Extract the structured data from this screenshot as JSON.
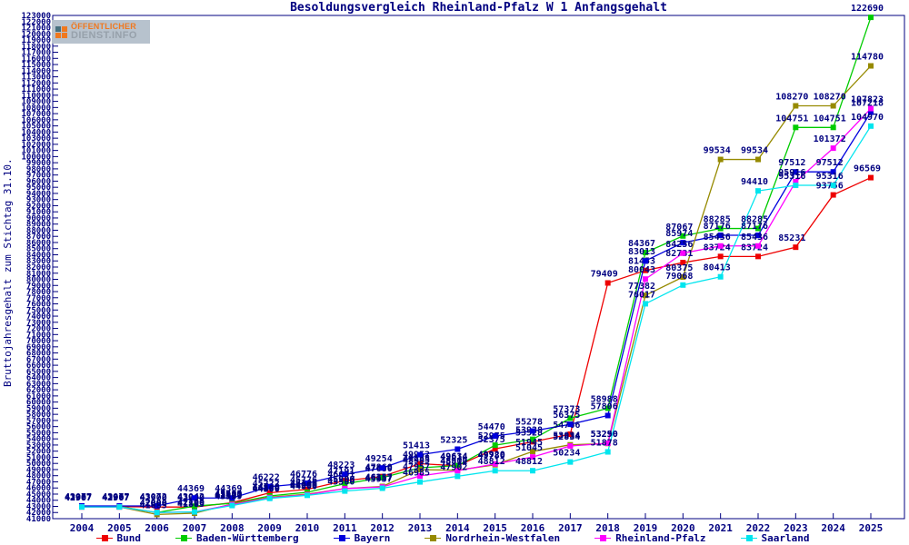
{
  "title": "Besoldungsvergleich Rheinland-Pfalz W 1 Anfangsgehalt",
  "logo": {
    "line1": "ÖFFENTLICHER",
    "line2": "DIENST.INFO"
  },
  "colors": {
    "axis": "#000080",
    "text": "#000080",
    "background": "#ffffff",
    "logo_background": "#b7c2cd",
    "logo_orange": "#f0781e",
    "logo_grey": "#97a1ab"
  },
  "chart_data": {
    "type": "line",
    "title": "Besoldungsvergleich Rheinland-Pfalz W 1 Anfangsgehalt",
    "xlabel": "",
    "ylabel": "Bruttojahresgehalt zum Stichtag 31.10.",
    "x": [
      2004,
      2005,
      2006,
      2007,
      2008,
      2009,
      2010,
      2011,
      2012,
      2013,
      2014,
      2015,
      2016,
      2017,
      2018,
      2019,
      2020,
      2021,
      2022,
      2023,
      2024,
      2025
    ],
    "ylim": [
      41000,
      123000
    ],
    "ytick_step": 1000,
    "grid": false,
    "point_labels": true,
    "legend_position": "bottom",
    "series": [
      {
        "name": "Bund",
        "color": "#ee0000",
        "values": [
          42967,
          42967,
          42900,
          42900,
          43600,
          45222,
          45776,
          47191,
          47860,
          49952,
          49614,
          52375,
          53528,
          54766,
          79409,
          81453,
          82731,
          83724,
          83724,
          85231,
          93756,
          96569
        ]
      },
      {
        "name": "Baden-Württemberg",
        "color": "#00cc00",
        "values": [
          42967,
          42967,
          42000,
          43042,
          43500,
          44700,
          45300,
          46691,
          47680,
          49285,
          49634,
          52975,
          53928,
          57373,
          58988,
          84367,
          87067,
          88285,
          88285,
          104751,
          104751,
          122690
        ]
      },
      {
        "name": "Bayern",
        "color": "#0000dd",
        "values": [
          43077,
          43077,
          43072,
          44369,
          44369,
          46222,
          46776,
          48223,
          49254,
          51413,
          52325,
          54470,
          55278,
          56375,
          57806,
          83013,
          85974,
          87176,
          87176,
          97512,
          97512,
          107218
        ]
      },
      {
        "name": "Nordrhein-Westfalen",
        "color": "#968a00",
        "values": [
          42907,
          42907,
          41685,
          41885,
          43400,
          44500,
          45000,
          45906,
          46257,
          48985,
          48900,
          49780,
          51945,
          53034,
          53250,
          77382,
          80375,
          99534,
          99534,
          108270,
          108270,
          114780
        ]
      },
      {
        "name": "Rheinland-Pfalz",
        "color": "#ff00ff",
        "values": [
          42907,
          42907,
          42000,
          42100,
          43300,
          44400,
          44900,
          45900,
          46157,
          47957,
          48812,
          49920,
          51045,
          52834,
          53290,
          80043,
          84256,
          85436,
          85436,
          95916,
          101372,
          107823
        ]
      },
      {
        "name": "Saarland",
        "color": "#00e5ee",
        "values": [
          42907,
          42907,
          42000,
          42100,
          43139,
          44300,
          44800,
          45500,
          45957,
          46985,
          47902,
          48812,
          48812,
          50234,
          51878,
          76017,
          79068,
          80413,
          94410,
          95316,
          95316,
          104970
        ]
      }
    ]
  }
}
